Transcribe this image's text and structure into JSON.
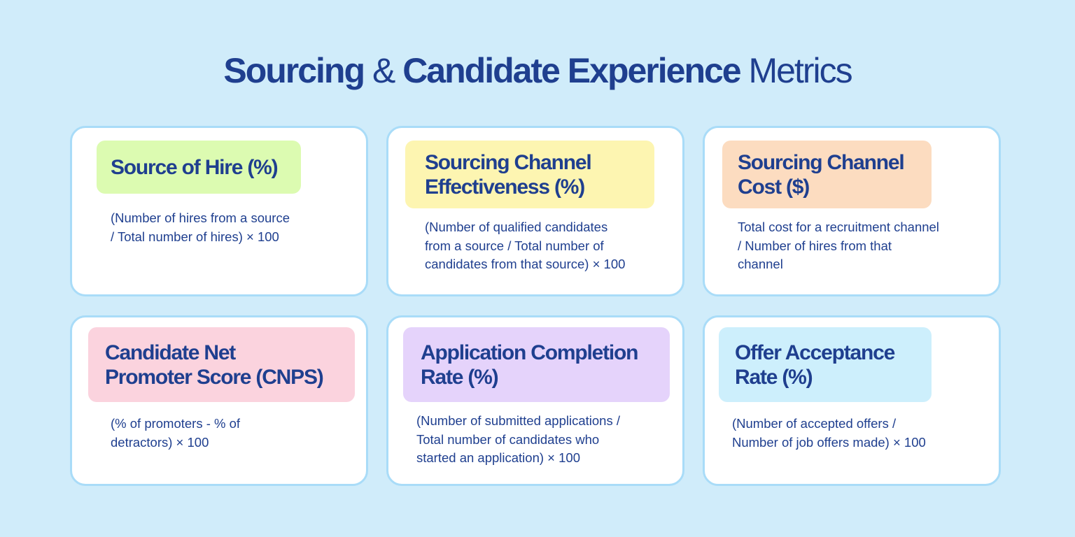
{
  "title": {
    "parts": [
      "Sourcing",
      "&",
      "Candidate Experience",
      "Metrics"
    ]
  },
  "cards": [
    {
      "heading": [
        "Source of Hire (%)"
      ],
      "formula": [
        "(Number of hires from a source",
        "/ Total number of hires) × 100"
      ]
    },
    {
      "heading": [
        "Sourcing Channel",
        "Effectiveness (%)"
      ],
      "formula": [
        "(Number of qualified candidates",
        "from a source / Total number of",
        "candidates from that source) × 100"
      ]
    },
    {
      "heading": [
        "Sourcing Channel",
        "Cost ($)"
      ],
      "formula": [
        "Total cost for a recruitment channel",
        "/ Number of hires from that",
        "channel"
      ]
    },
    {
      "heading": [
        "Candidate Net",
        "Promoter Score (CNPS)"
      ],
      "formula": [
        "(% of promoters - % of",
        "detractors) × 100"
      ]
    },
    {
      "heading": [
        "Application Completion",
        "Rate (%)"
      ],
      "formula": [
        "(Number of submitted applications /",
        "Total number of candidates who",
        "started an application) × 100"
      ]
    },
    {
      "heading": [
        "Offer Acceptance",
        "Rate (%)"
      ],
      "formula": [
        "(Number of accepted offers /",
        "Number of job offers made) × 100"
      ]
    }
  ]
}
